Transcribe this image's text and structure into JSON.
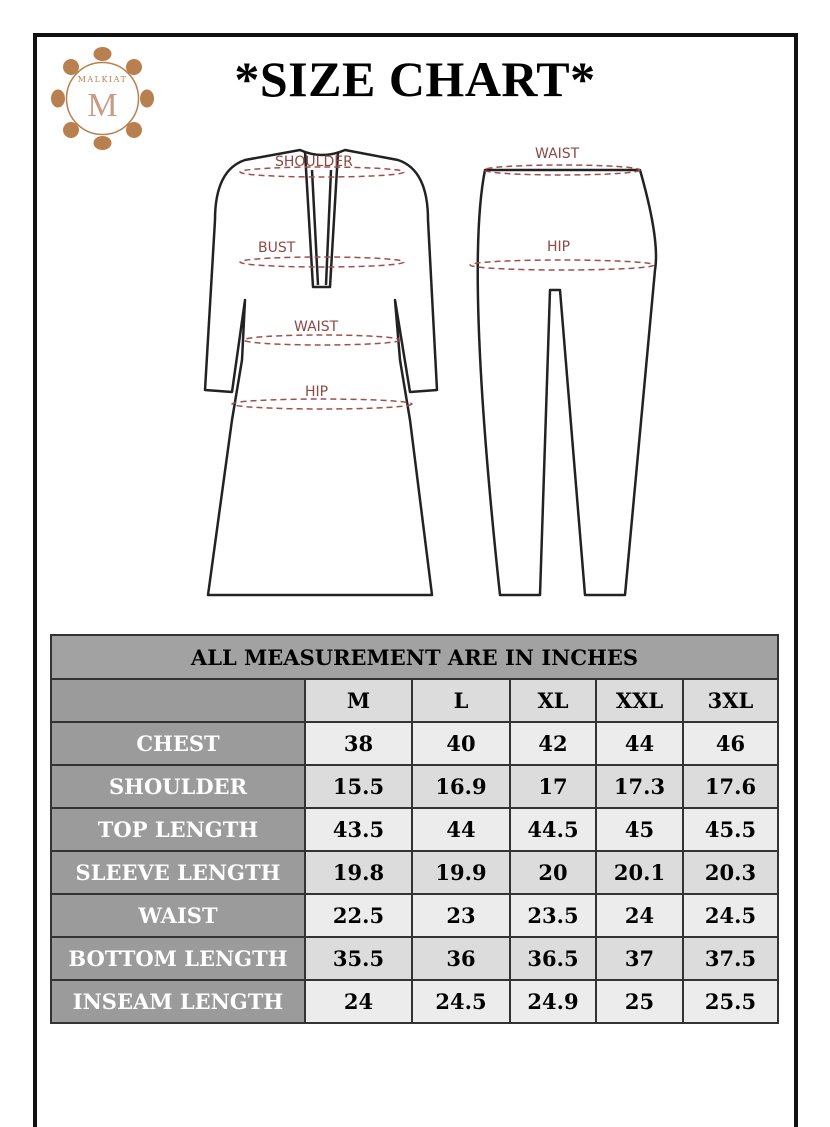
{
  "brand": {
    "logo_text": "MALKIAT",
    "logo_letter": "M",
    "logo_color": "#b9804f"
  },
  "title": "*SIZE CHART*",
  "diagram": {
    "top_labels": [
      "SHOULDER",
      "BUST",
      "WAIST",
      "HIP"
    ],
    "bottom_labels": [
      "WAIST",
      "HIP"
    ],
    "label_color": "#8b4a45"
  },
  "table": {
    "caption": "ALL MEASUREMENT ARE IN INCHES",
    "sizes": [
      "M",
      "L",
      "XL",
      "XXL",
      "3XL"
    ],
    "rows": [
      {
        "label": "CHEST",
        "values": [
          "38",
          "40",
          "42",
          "44",
          "46"
        ]
      },
      {
        "label": "SHOULDER",
        "values": [
          "15.5",
          "16.9",
          "17",
          "17.3",
          "17.6"
        ]
      },
      {
        "label": "TOP LENGTH",
        "values": [
          "43.5",
          "44",
          "44.5",
          "45",
          "45.5"
        ]
      },
      {
        "label": "SLEEVE LENGTH",
        "values": [
          "19.8",
          "19.9",
          "20",
          "20.1",
          "20.3"
        ]
      },
      {
        "label": "WAIST",
        "values": [
          "22.5",
          "23",
          "23.5",
          "24",
          "24.5"
        ]
      },
      {
        "label": "BOTTOM LENGTH",
        "values": [
          "35.5",
          "36",
          "36.5",
          "37",
          "37.5"
        ]
      },
      {
        "label": "INSEAM LENGTH",
        "values": [
          "24",
          "24.5",
          "24.9",
          "25",
          "25.5"
        ]
      }
    ]
  }
}
